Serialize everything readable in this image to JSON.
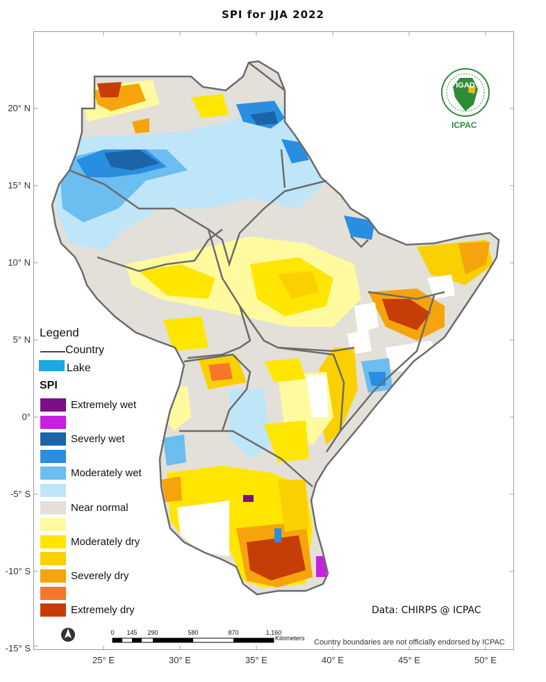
{
  "title": "SPI   for  JJA  2022",
  "lat_labels": [
    {
      "text": "20° N",
      "lat": 20
    },
    {
      "text": "15° N",
      "lat": 15
    },
    {
      "text": "10° N",
      "lat": 10
    },
    {
      "text": "5° N",
      "lat": 5
    },
    {
      "text": "0°",
      "lat": 0
    },
    {
      "text": "-5° S",
      "lat": -5
    },
    {
      "text": "-10° S",
      "lat": -10
    },
    {
      "text": "-15° S",
      "lat": -15
    }
  ],
  "lon_labels": [
    {
      "text": "25° E",
      "lon": 25
    },
    {
      "text": "30° E",
      "lon": 30
    },
    {
      "text": "35° E",
      "lon": 35
    },
    {
      "text": "40° E",
      "lon": 40
    },
    {
      "text": "45° E",
      "lon": 45
    },
    {
      "text": "50° E",
      "lon": 50
    }
  ],
  "legend": {
    "title": "Legend",
    "country_label": "Country",
    "lake_label": "Lake",
    "lake_color": "#1ea7e1",
    "spi_title": "SPI",
    "classes": [
      {
        "label": "Extremely wet",
        "color": "#7b0f86"
      },
      {
        "label": "",
        "color": "#c81fe0"
      },
      {
        "label": "Severly wet",
        "color": "#1c64a8"
      },
      {
        "label": "",
        "color": "#2a8ee0"
      },
      {
        "label": "Moderately wet",
        "color": "#6cbdf0"
      },
      {
        "label": "",
        "color": "#bfe5f9"
      },
      {
        "label": "Near normal",
        "color": "#e2e0d8"
      },
      {
        "label": "",
        "color": "#fffaa0"
      },
      {
        "label": "Moderately dry",
        "color": "#ffe600"
      },
      {
        "label": "",
        "color": "#fbd000"
      },
      {
        "label": "Severely dry",
        "color": "#f6a40c"
      },
      {
        "label": "",
        "color": "#f4772a"
      },
      {
        "label": "Extremely dry",
        "color": "#c63d08"
      }
    ]
  },
  "credit": "Data: CHIRPS @ ICPAC",
  "disclaimer": "Country boundaries are not officially endorsed by ICPAC",
  "logo": {
    "org": "IGAD",
    "name": "ICPAC"
  },
  "scale_bar": {
    "unit": "Kilometers",
    "ticks": [
      "0",
      "145",
      "290",
      "580",
      "870",
      "1,160"
    ]
  }
}
